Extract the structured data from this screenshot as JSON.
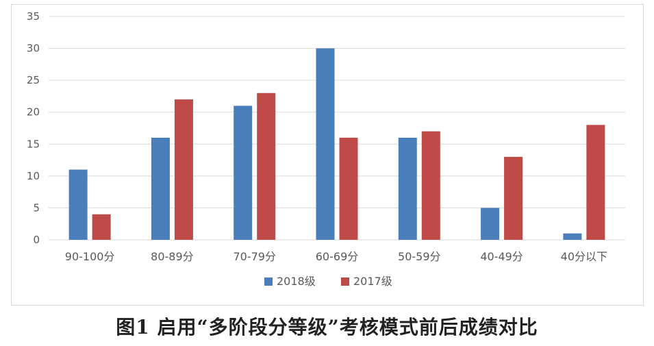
{
  "chart_data": {
    "type": "bar",
    "title": "",
    "xlabel": "",
    "ylabel": "",
    "categories": [
      "90-100分",
      "80-89分",
      "70-79分",
      "60-69分",
      "50-59分",
      "40-49分",
      "40分以下"
    ],
    "series": [
      {
        "name": "2018级",
        "color": "#4a7ebb",
        "values": [
          11,
          16,
          21,
          30,
          16,
          5,
          1
        ]
      },
      {
        "name": "2017级",
        "color": "#be4b48",
        "values": [
          4,
          22,
          23,
          16,
          17,
          13,
          18
        ]
      }
    ],
    "ylim": [
      0,
      35
    ],
    "yticks": [
      0,
      5,
      10,
      15,
      20,
      25,
      30,
      35
    ],
    "grid": true,
    "legend_position": "bottom-center"
  },
  "caption": "图1   启用“多阶段分等级”考核模式前后成绩对比",
  "colors": {
    "grid": "#d9d9d9",
    "axis_text": "#595959"
  }
}
